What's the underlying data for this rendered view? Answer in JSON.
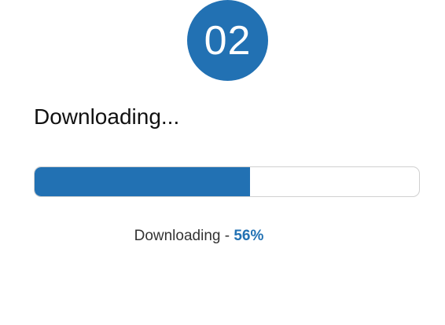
{
  "step": {
    "number": "02"
  },
  "heading": "Downloading...",
  "progress": {
    "percent": 56,
    "fill_color": "#2271b3"
  },
  "status": {
    "label": "Downloading",
    "separator": " - ",
    "percent_text": "56%"
  }
}
